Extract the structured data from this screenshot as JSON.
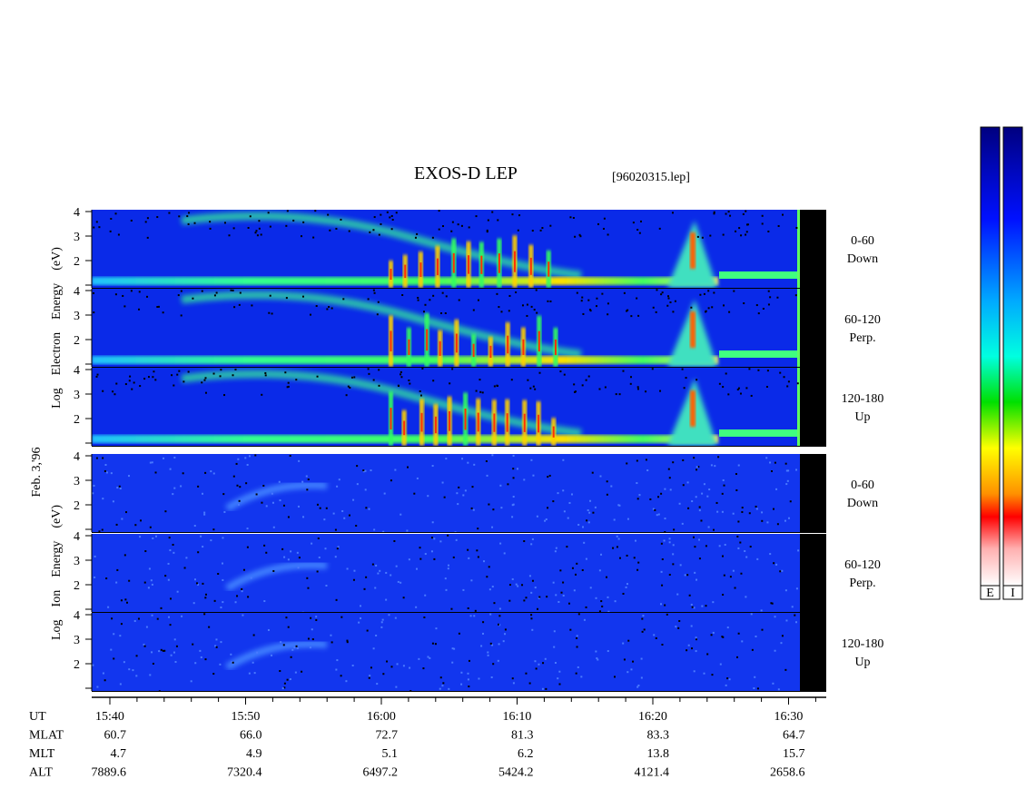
{
  "title": "EXOS-D LEP",
  "file": "[96020315.lep]",
  "date": "Feb. 3,'96",
  "yticks": [
    "2",
    "3",
    "4"
  ],
  "electron": {
    "ylabel": [
      "Log",
      "Electron",
      "Energy",
      "(eV)"
    ],
    "panels": [
      {
        "angle": "0-60",
        "dir": "Down"
      },
      {
        "angle": "60-120",
        "dir": "Perp."
      },
      {
        "angle": "120-180",
        "dir": "Up"
      }
    ]
  },
  "ion": {
    "ylabel": [
      "Log",
      "Ion",
      "Energy",
      "(eV)"
    ],
    "panels": [
      {
        "angle": "0-60",
        "dir": "Down"
      },
      {
        "angle": "60-120",
        "dir": "Perp."
      },
      {
        "angle": "120-180",
        "dir": "Up"
      }
    ]
  },
  "time_table": {
    "rows": [
      {
        "label": "UT",
        "values": [
          "15:40",
          "15:50",
          "16:00",
          "16:10",
          "16:20",
          "16:30"
        ]
      },
      {
        "label": "MLAT",
        "values": [
          "60.7",
          "66.0",
          "72.7",
          "81.3",
          "83.3",
          "64.7"
        ]
      },
      {
        "label": "MLT",
        "values": [
          "4.7",
          "4.9",
          "5.1",
          "6.2",
          "13.8",
          "15.7"
        ]
      },
      {
        "label": "ALT",
        "values": [
          "7889.6",
          "7320.4",
          "6497.2",
          "5424.2",
          "4121.4",
          "2658.6"
        ]
      }
    ]
  },
  "colorbar_labels": [
    "E",
    "I"
  ]
}
